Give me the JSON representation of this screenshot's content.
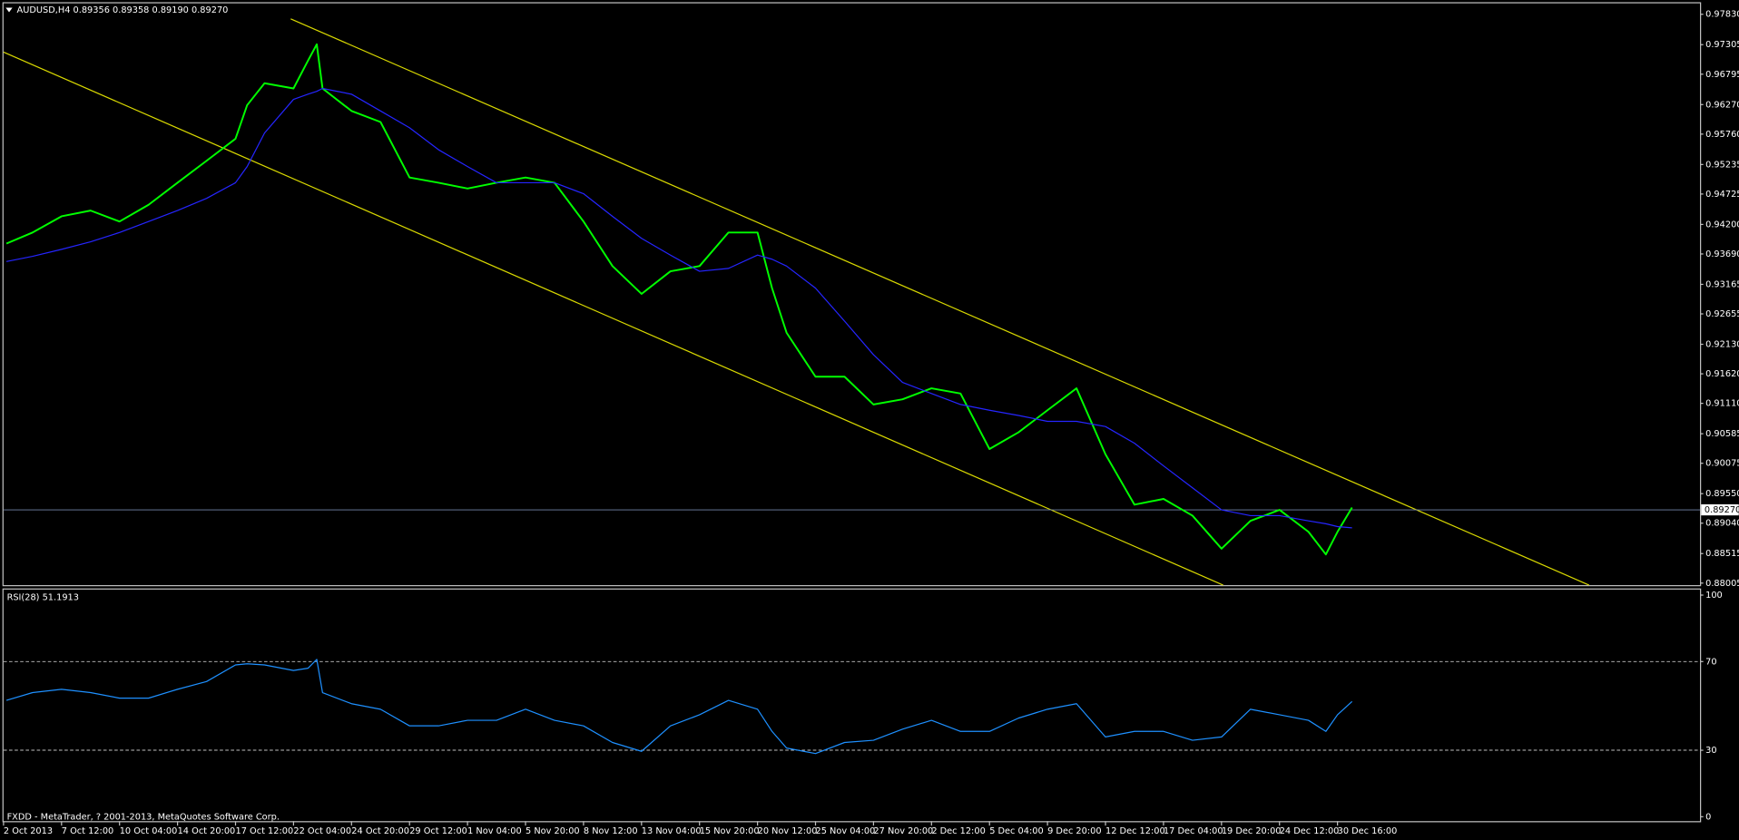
{
  "chart_data": [
    {
      "type": "line",
      "title": "AUDUSD,H4  0.89356 0.89358 0.89190 0.89270",
      "x": [
        1,
        10,
        20,
        30,
        40,
        50,
        60,
        70,
        80,
        84,
        90,
        100,
        105,
        108,
        110,
        120,
        130,
        140,
        150,
        160,
        170,
        180,
        190,
        200,
        210,
        220,
        230,
        240,
        250,
        260,
        265,
        270,
        280,
        290,
        300,
        310,
        320,
        330,
        340,
        350,
        360,
        370,
        380,
        390,
        400,
        410,
        420,
        430,
        440,
        450,
        456,
        460,
        465
      ],
      "series": [
        {
          "color": "#00ff00",
          "values": [
            0.9387,
            0.9406,
            0.9434,
            0.9444,
            0.9425,
            0.9454,
            0.9492,
            0.953,
            0.9568,
            0.9626,
            0.9664,
            0.9655,
            0.9703,
            0.9731,
            0.9655,
            0.9616,
            0.9597,
            0.9501,
            0.9492,
            0.9482,
            0.9492,
            0.9501,
            0.9492,
            0.9425,
            0.9348,
            0.93,
            0.9339,
            0.9348,
            0.9406,
            0.9406,
            0.931,
            0.9233,
            0.9157,
            0.9157,
            0.9109,
            0.9118,
            0.9137,
            0.9128,
            0.9032,
            0.9061,
            0.9099,
            0.9137,
            0.9023,
            0.8936,
            0.8946,
            0.8917,
            0.886,
            0.8908,
            0.8927,
            0.8889,
            0.885,
            0.8889,
            0.8931
          ]
        },
        {
          "color": "#2525ff",
          "values": [
            0.9356,
            0.9365,
            0.9377,
            0.939,
            0.9406,
            0.9425,
            0.9444,
            0.9465,
            0.9492,
            0.952,
            0.9578,
            0.9636,
            0.9645,
            0.965,
            0.9655,
            0.9645,
            0.9616,
            0.9587,
            0.9549,
            0.952,
            0.9492,
            0.9492,
            0.9492,
            0.9473,
            0.9434,
            0.9396,
            0.9367,
            0.9339,
            0.9344,
            0.9367,
            0.936,
            0.9348,
            0.931,
            0.9253,
            0.9195,
            0.9147,
            0.9128,
            0.9109,
            0.9099,
            0.909,
            0.908,
            0.908,
            0.9071,
            0.9042,
            0.9003,
            0.8965,
            0.8927,
            0.8917,
            0.8917,
            0.8908,
            0.8903,
            0.8898,
            0.8896
          ]
        }
      ],
      "xlim": [
        0,
        585
      ],
      "xticks": [
        {
          "value": 0,
          "label": "2 Oct 2013"
        },
        {
          "value": 20,
          "label": "7 Oct 12:00"
        },
        {
          "value": 40,
          "label": "10 Oct 04:00"
        },
        {
          "value": 60,
          "label": "14 Oct 20:00"
        },
        {
          "value": 80,
          "label": "17 Oct 12:00"
        },
        {
          "value": 100,
          "label": "22 Oct 04:00"
        },
        {
          "value": 120,
          "label": "24 Oct 20:00"
        },
        {
          "value": 140,
          "label": "29 Oct 12:00"
        },
        {
          "value": 160,
          "label": "1 Nov 04:00"
        },
        {
          "value": 180,
          "label": "5 Nov 20:00"
        },
        {
          "value": 200,
          "label": "8 Nov 12:00"
        },
        {
          "value": 220,
          "label": "13 Nov 04:00"
        },
        {
          "value": 240,
          "label": "15 Nov 20:00"
        },
        {
          "value": 260,
          "label": "20 Nov 12:00"
        },
        {
          "value": 280,
          "label": "25 Nov 04:00"
        },
        {
          "value": 300,
          "label": "27 Nov 20:00"
        },
        {
          "value": 320,
          "label": "2 Dec 12:00"
        },
        {
          "value": 340,
          "label": "5 Dec 04:00"
        },
        {
          "value": 360,
          "label": "9 Dec 20:00"
        },
        {
          "value": 380,
          "label": "12 Dec 12:00"
        },
        {
          "value": 400,
          "label": "17 Dec 04:00"
        },
        {
          "value": 420,
          "label": "19 Dec 20:00"
        },
        {
          "value": 440,
          "label": "24 Dec 12:00"
        },
        {
          "value": 460,
          "label": "30 Dec 16:00"
        }
      ],
      "ylim": [
        0.8797,
        0.98
      ],
      "yticks": [
        {
          "value": 0.9783,
          "label": "0.97830"
        },
        0.97305,
        0.96795,
        {
          "value": 0.9627,
          "label": "0.96270"
        },
        {
          "value": 0.9576,
          "label": "0.95760"
        },
        0.95235,
        0.94725,
        {
          "value": 0.942,
          "label": "0.94200"
        },
        {
          "value": 0.9369,
          "label": "0.93690"
        },
        0.93165,
        0.92655,
        {
          "value": 0.9213,
          "label": "0.92130"
        },
        {
          "value": 0.9162,
          "label": "0.91620"
        },
        {
          "value": 0.9111,
          "label": "0.91110"
        },
        0.90585,
        0.90075,
        {
          "value": 0.8955,
          "label": "0.89550"
        },
        {
          "value": 0.8904,
          "label": "0.89040"
        },
        0.88515,
        0.88005
      ],
      "current": {
        "value": 0.8927,
        "label": "0.89270"
      }
    },
    {
      "type": "line",
      "title": "RSI(28) 51.1913",
      "x": [
        1,
        10,
        20,
        30,
        40,
        50,
        60,
        70,
        80,
        84,
        90,
        100,
        105,
        108,
        110,
        120,
        130,
        140,
        150,
        160,
        170,
        180,
        190,
        200,
        210,
        220,
        230,
        240,
        250,
        260,
        265,
        270,
        280,
        290,
        300,
        310,
        320,
        330,
        340,
        350,
        360,
        370,
        380,
        390,
        400,
        410,
        420,
        430,
        440,
        450,
        456,
        460,
        465
      ],
      "series": [
        {
          "color": "#1e90ff",
          "values": [
            52.5,
            56,
            57.5,
            56,
            53.5,
            53.5,
            57.5,
            61,
            68.5,
            69,
            68.5,
            66,
            67,
            71,
            56,
            51,
            48.5,
            41,
            41,
            43.5,
            43.5,
            48.5,
            43.5,
            41,
            33.5,
            29.5,
            41,
            46,
            52.5,
            48.5,
            38.5,
            31,
            28.5,
            33.5,
            34.5,
            39.5,
            43.5,
            38.5,
            38.5,
            44.5,
            48.5,
            51,
            36,
            38.5,
            38.5,
            34.5,
            36,
            48.5,
            46,
            43.5,
            38.5,
            46,
            52
          ]
        }
      ],
      "xlim": [
        0,
        585
      ],
      "ylim": [
        -2,
        102
      ],
      "yticks": [
        100,
        70,
        30,
        0
      ],
      "levels": [
        70,
        30
      ]
    }
  ],
  "footer": "FXDD - MetaTrader, ? 2001-2013, MetaQuotes Software Corp."
}
